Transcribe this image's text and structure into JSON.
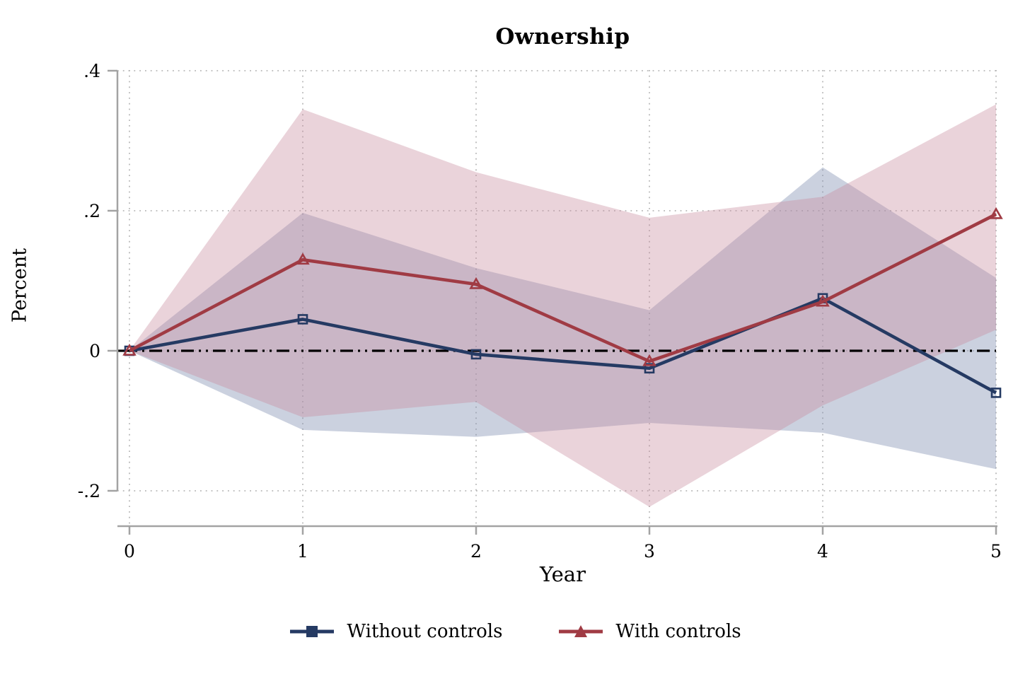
{
  "chart_data": {
    "type": "line",
    "title": "Ownership",
    "xlabel": "Year",
    "ylabel": "Percent",
    "x": [
      0,
      1,
      2,
      3,
      4,
      5
    ],
    "x_tick_labels": [
      "0",
      "1",
      "2",
      "3",
      "4",
      "5"
    ],
    "y_ticks": [
      {
        "label": ".4",
        "value": 0.4
      },
      {
        "label": ".2",
        "value": 0.2
      },
      {
        "label": "0",
        "value": 0
      },
      {
        "label": "-.2",
        "value": -0.2
      }
    ],
    "ylim": [
      -0.26,
      0.41
    ],
    "xlim": [
      0,
      5
    ],
    "grid": "dotted",
    "legend_position": "bottom",
    "reference_line": {
      "y": 0,
      "style": "dash-dot",
      "color": "#000000"
    },
    "series": [
      {
        "name": "Without controls",
        "color": "#253a63",
        "marker": "square",
        "band_color": "#8291b3",
        "band_opacity": 0.42,
        "values": [
          0,
          0.045,
          -0.005,
          -0.025,
          0.075,
          -0.06
        ],
        "ci_upper": [
          0,
          0.197,
          0.118,
          0.058,
          0.262,
          0.104
        ],
        "ci_lower": [
          0,
          -0.113,
          -0.123,
          -0.103,
          -0.117,
          -0.169
        ]
      },
      {
        "name": "With controls",
        "color": "#a03b44",
        "marker": "triangle",
        "band_color": "#c98b9d",
        "band_opacity": 0.38,
        "values": [
          0,
          0.13,
          0.095,
          -0.015,
          0.07,
          0.195
        ],
        "ci_upper": [
          0,
          0.345,
          0.255,
          0.19,
          0.22,
          0.352
        ],
        "ci_lower": [
          0,
          -0.095,
          -0.073,
          -0.223,
          -0.078,
          0.03
        ]
      }
    ]
  },
  "style": {
    "axis_color": "#a3a3a3",
    "grid_color": "#b8b8b8",
    "text_color": "#000000"
  }
}
